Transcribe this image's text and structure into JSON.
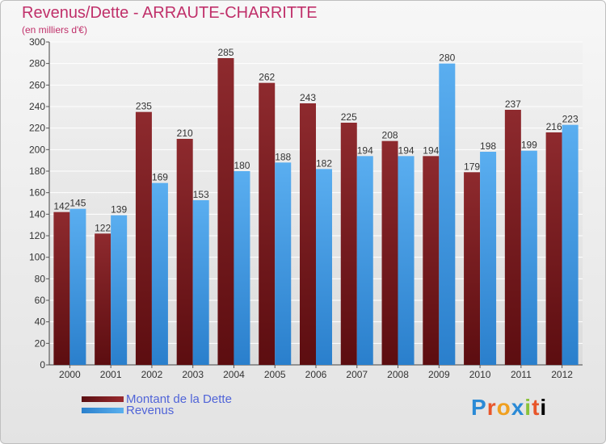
{
  "chart_data": {
    "type": "bar",
    "title": "Revenus/Dette - ARRAUTE-CHARRITTE",
    "subtitle": "(en milliers d'€)",
    "categories": [
      "2000",
      "2001",
      "2002",
      "2003",
      "2004",
      "2005",
      "2006",
      "2007",
      "2008",
      "2009",
      "2010",
      "2011",
      "2012"
    ],
    "series": [
      {
        "name": "Montant de la Dette",
        "color": "#7a1b1f",
        "values": [
          142,
          122,
          235,
          210,
          285,
          262,
          243,
          225,
          208,
          194,
          179,
          237,
          216
        ]
      },
      {
        "name": "Revenus",
        "color": "#3a95de",
        "values": [
          145,
          139,
          169,
          153,
          180,
          188,
          182,
          194,
          194,
          280,
          198,
          199,
          223
        ]
      }
    ],
    "ylim": [
      0,
      300
    ],
    "yticks": [
      "0",
      "20",
      "40",
      "60",
      "80",
      "100",
      "120",
      "140",
      "160",
      "180",
      "200",
      "220",
      "240",
      "260",
      "280",
      "300"
    ],
    "grid": true,
    "legend_position": "bottom-left"
  },
  "brand": {
    "letters": [
      "P",
      "r",
      "o",
      "x",
      "i",
      "t",
      "i"
    ]
  }
}
